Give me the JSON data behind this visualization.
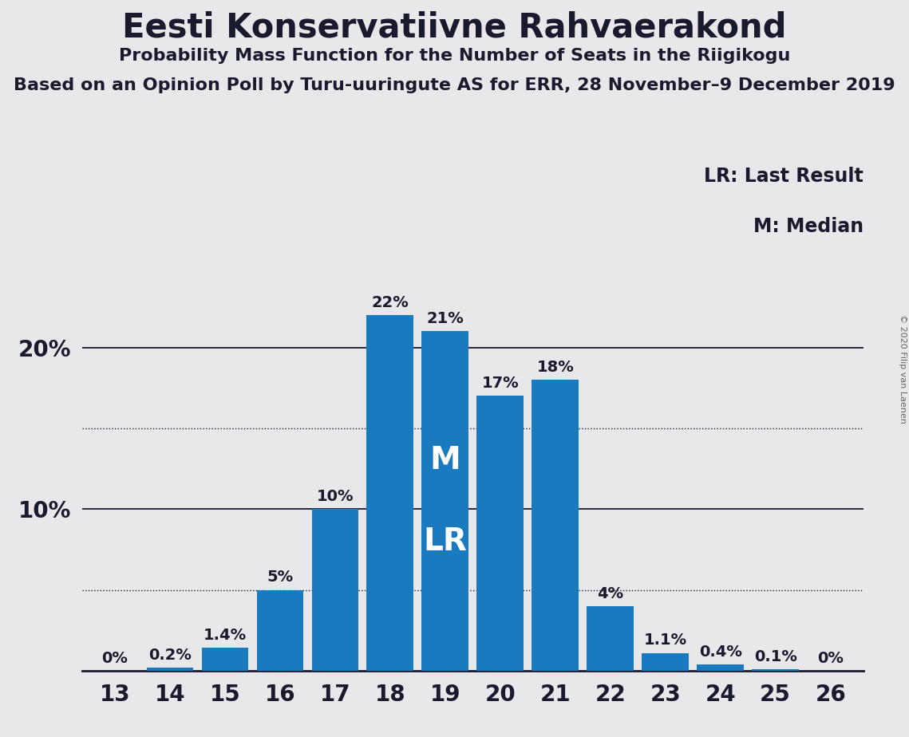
{
  "title": "Eesti Konservatiivne Rahvaerakond",
  "subtitle": "Probability Mass Function for the Number of Seats in the Riigikogu",
  "subsubtitle": "Based on an Opinion Poll by Turu-uuringute AS for ERR, 28 November–9 December 2019",
  "copyright": "© 2020 Filip van Laenen",
  "seats": [
    13,
    14,
    15,
    16,
    17,
    18,
    19,
    20,
    21,
    22,
    23,
    24,
    25,
    26
  ],
  "probabilities": [
    0.0,
    0.2,
    1.4,
    5.0,
    10.0,
    22.0,
    21.0,
    17.0,
    18.0,
    4.0,
    1.1,
    0.4,
    0.1,
    0.0
  ],
  "labels": [
    "0%",
    "0.2%",
    "1.4%",
    "5%",
    "10%",
    "22%",
    "21%",
    "17%",
    "18%",
    "4%",
    "1.1%",
    "0.4%",
    "0.1%",
    "0%"
  ],
  "bar_color": "#1a7abf",
  "background_color": "#e8e8ea",
  "median_seat": 19,
  "last_result_seat": 19,
  "solid_gridlines": [
    10,
    20
  ],
  "dotted_gridlines": [
    5,
    15
  ],
  "legend_lr": "LR: Last Result",
  "legend_m": "M: Median",
  "title_fontsize": 30,
  "subtitle_fontsize": 16,
  "subsubtitle_fontsize": 16,
  "bar_label_fontsize": 14,
  "axis_tick_fontsize": 20,
  "legend_fontsize": 17,
  "ml_fontsize": 28
}
